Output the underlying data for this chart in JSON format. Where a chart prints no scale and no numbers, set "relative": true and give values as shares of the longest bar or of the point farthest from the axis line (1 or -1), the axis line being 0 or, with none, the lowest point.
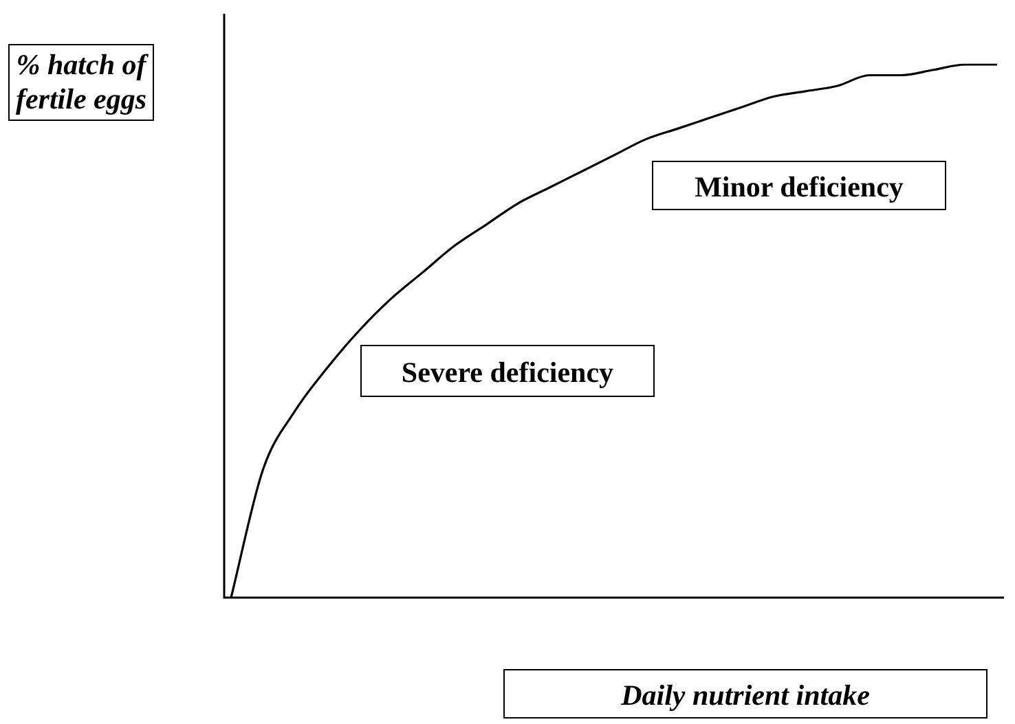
{
  "chart_data": {
    "type": "line",
    "relative": true,
    "xlabel": "Daily nutrient intake",
    "ylabel": "% hatch of fertile eggs",
    "categories": [
      null,
      null,
      null,
      null,
      null,
      null,
      null,
      null,
      null,
      null,
      null,
      null,
      null,
      null,
      null,
      null,
      null,
      null,
      null,
      null,
      null,
      null,
      null,
      null,
      null
    ],
    "series": [
      {
        "color": "#000000",
        "values": [
          0,
          0.24,
          0.35,
          0.43,
          0.5,
          0.56,
          0.61,
          0.66,
          0.7,
          0.74,
          0.77,
          0.8,
          0.83,
          0.86,
          0.88,
          0.9,
          0.92,
          0.94,
          0.95,
          0.96,
          0.98,
          0.98,
          0.99,
          1,
          1
        ]
      }
    ],
    "annotations": [
      "Minor deficiency",
      "Severe deficiency"
    ],
    "marker": "none",
    "legend": false
  }
}
